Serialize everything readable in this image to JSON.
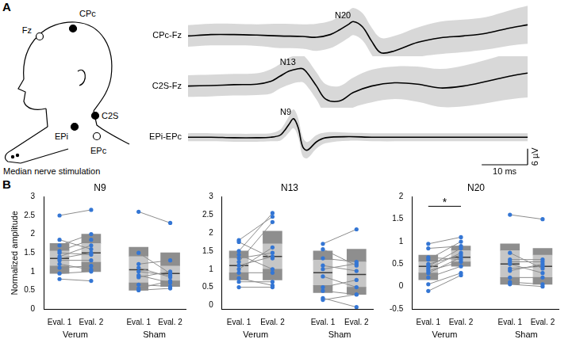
{
  "panel_labels": [
    "A",
    "B"
  ],
  "diagram": {
    "electrodes": [
      {
        "label": "Fz",
        "marker": "open"
      },
      {
        "label": "CPc",
        "marker": "filled"
      },
      {
        "label": "C2S",
        "marker": "filled"
      },
      {
        "label": "EPi",
        "marker": "filled"
      },
      {
        "label": "EPc",
        "marker": "open"
      }
    ],
    "caption": "Median nerve stimulation"
  },
  "chart_data": [
    {
      "type": "line",
      "tick_labels": false,
      "xlim": [
        0,
        74
      ],
      "ylim": [
        -8,
        11
      ],
      "x": [
        0,
        5,
        10,
        15,
        20,
        25,
        28,
        31,
        33,
        35,
        36,
        38,
        40,
        42,
        45,
        50,
        55,
        60,
        65,
        70,
        74
      ],
      "series": [
        {
          "name": "CPc-Fz",
          "color": "#000000",
          "values": [
            -0.5,
            0,
            0,
            -0.2,
            -0.5,
            -0.7,
            -1,
            0,
            1.7,
            3.8,
            4.8,
            2.9,
            -2.4,
            -6.7,
            -6,
            -2.9,
            -1.2,
            -0.5,
            0.5,
            2.4,
            3.6
          ],
          "sd": [
            4,
            4,
            4,
            4,
            4.5,
            4.5,
            5,
            5,
            5,
            5,
            5,
            5,
            5,
            5.5,
            5.5,
            5.5,
            6,
            6,
            6,
            6.5,
            7
          ]
        }
      ],
      "annotations": [
        {
          "text": "N20",
          "x": 36,
          "y": 4.8
        }
      ]
    },
    {
      "type": "line",
      "tick_labels": false,
      "xlim": [
        0,
        74
      ],
      "ylim": [
        -8,
        11
      ],
      "x": [
        0,
        5,
        10,
        15,
        18,
        20,
        22,
        24,
        25,
        26,
        28,
        30,
        33,
        36,
        40,
        45,
        50,
        55,
        60,
        65,
        70,
        74
      ],
      "series": [
        {
          "name": "C2S-Fz",
          "color": "#000000",
          "values": [
            0,
            0.2,
            0.5,
            0.7,
            1.7,
            3.6,
            5.5,
            6.4,
            6.4,
            4.8,
            0,
            -4.8,
            -5.5,
            -2.4,
            0,
            1.2,
            0.7,
            -0.7,
            0,
            1.7,
            3.6,
            4.8
          ],
          "sd": [
            4,
            4,
            4,
            4,
            4.5,
            4.5,
            5,
            5,
            5,
            5,
            5,
            5.5,
            5.5,
            5.5,
            6,
            6,
            6.5,
            7,
            7.5,
            8,
            8.5,
            9
          ]
        }
      ],
      "annotations": [
        {
          "text": "N13",
          "x": 24,
          "y": 6.4
        }
      ]
    },
    {
      "type": "line",
      "tick_labels": false,
      "xlim": [
        0,
        74
      ],
      "ylim": [
        -15,
        11
      ],
      "x": [
        0,
        5,
        10,
        15,
        18,
        20,
        21,
        22,
        23,
        24,
        25,
        26,
        28,
        30,
        35,
        40,
        50,
        60,
        70,
        74
      ],
      "series": [
        {
          "name": "EPi-EPc",
          "color": "#000000",
          "values": [
            0,
            0,
            -0.2,
            -0.2,
            0,
            0.7,
            2.4,
            4.8,
            6.9,
            3.6,
            -3.6,
            -4.8,
            -1.7,
            -0.2,
            0.2,
            0,
            0,
            0,
            0,
            0
          ],
          "sd": [
            1.5,
            1.5,
            1.5,
            1.5,
            1.5,
            2,
            2.5,
            3,
            3.5,
            3.5,
            3.5,
            3,
            2.5,
            2,
            1.5,
            1.5,
            1.5,
            1.5,
            1.5,
            1.5
          ]
        }
      ],
      "annotations": [
        {
          "text": "N9",
          "x": 23,
          "y": 6.9
        }
      ],
      "scale_bars": [
        {
          "axis": "x",
          "value": 10,
          "label": "10 ms"
        },
        {
          "axis": "y",
          "value": 6,
          "label": "6 µV"
        }
      ]
    },
    {
      "type": "box",
      "title": "N9",
      "y_label": "Normalized amplitude",
      "color": "#3476d4",
      "categories": [
        "Eval. 1",
        "Eval. 2"
      ],
      "ylim": [
        0,
        3
      ],
      "yticks": [
        0,
        0.5,
        1,
        1.5,
        2,
        2.5,
        3
      ],
      "groups": [
        {
          "name": "Verum",
          "boxes": [
            {
              "low": 0.95,
              "ci_low": 1.15,
              "mean": 1.35,
              "ci_high": 1.55,
              "high": 1.75
            },
            {
              "low": 1.0,
              "ci_low": 1.25,
              "mean": 1.5,
              "ci_high": 1.75,
              "high": 2.0
            }
          ],
          "pairs": [
            [
              2.5,
              2.65
            ],
            [
              1.85,
              1.6
            ],
            [
              1.7,
              2.0
            ],
            [
              1.55,
              1.85
            ],
            [
              1.5,
              1.45
            ],
            [
              1.4,
              1.7
            ],
            [
              1.35,
              1.5
            ],
            [
              1.3,
              1.3
            ],
            [
              1.2,
              1.05
            ],
            [
              1.1,
              1.15
            ],
            [
              0.95,
              1.0
            ],
            [
              0.8,
              0.75
            ]
          ]
        },
        {
          "name": "Sham",
          "boxes": [
            {
              "low": 0.5,
              "ci_low": 0.7,
              "mean": 1.05,
              "ci_high": 1.4,
              "high": 1.65
            },
            {
              "low": 0.6,
              "ci_low": 0.75,
              "mean": 0.95,
              "ci_high": 1.15,
              "high": 1.5
            }
          ],
          "pairs": [
            [
              2.6,
              2.3
            ],
            [
              1.5,
              0.95
            ],
            [
              1.2,
              1.3
            ],
            [
              1.1,
              0.85
            ],
            [
              1.0,
              0.9
            ],
            [
              0.9,
              0.7
            ],
            [
              0.85,
              1.0
            ],
            [
              0.65,
              0.6
            ],
            [
              0.55,
              0.75
            ],
            [
              0.5,
              0.55
            ]
          ]
        }
      ]
    },
    {
      "type": "box",
      "title": "N13",
      "color": "#3476d4",
      "categories": [
        "Eval. 1",
        "Eval. 2"
      ],
      "ylim": [
        -0.1,
        3
      ],
      "yticks": [
        0,
        0.5,
        1,
        1.5,
        2,
        2.5,
        3
      ],
      "groups": [
        {
          "name": "Verum",
          "boxes": [
            {
              "low": 0.7,
              "ci_low": 0.9,
              "mean": 1.1,
              "ci_high": 1.3,
              "high": 1.5
            },
            {
              "low": 0.7,
              "ci_low": 1.0,
              "mean": 1.35,
              "ci_high": 1.7,
              "high": 2.05
            }
          ],
          "pairs": [
            [
              1.8,
              2.45
            ],
            [
              1.75,
              1.3
            ],
            [
              1.5,
              2.55
            ],
            [
              1.4,
              1.0
            ],
            [
              1.3,
              1.45
            ],
            [
              1.2,
              2.3
            ],
            [
              1.1,
              1.35
            ],
            [
              1.0,
              1.6
            ],
            [
              0.9,
              0.9
            ],
            [
              0.75,
              0.55
            ],
            [
              0.65,
              0.65
            ],
            [
              0.5,
              0.5
            ]
          ]
        },
        {
          "name": "Sham",
          "boxes": [
            {
              "low": 0.35,
              "ci_low": 0.55,
              "mean": 0.9,
              "ci_high": 1.25,
              "high": 1.5
            },
            {
              "low": 0.3,
              "ci_low": 0.5,
              "mean": 0.85,
              "ci_high": 1.2,
              "high": 1.55
            }
          ],
          "pairs": [
            [
              1.7,
              2.1
            ],
            [
              1.55,
              1.1
            ],
            [
              1.3,
              1.2
            ],
            [
              1.1,
              0.95
            ],
            [
              1.0,
              1.15
            ],
            [
              0.8,
              0.5
            ],
            [
              0.5,
              0.7
            ],
            [
              0.4,
              0.3
            ],
            [
              0.2,
              -0.05
            ],
            [
              0.15,
              0.3
            ]
          ]
        }
      ]
    },
    {
      "type": "box",
      "title": "N20",
      "color": "#3476d4",
      "categories": [
        "Eval. 1",
        "Eval. 2"
      ],
      "ylim": [
        -0.5,
        2
      ],
      "yticks": [
        -0.5,
        0,
        0.5,
        1,
        1.5,
        2
      ],
      "significance": [
        {
          "group": "Verum",
          "label": "*"
        }
      ],
      "groups": [
        {
          "name": "Verum",
          "boxes": [
            {
              "low": 0.15,
              "ci_low": 0.3,
              "mean": 0.45,
              "ci_high": 0.55,
              "high": 0.7
            },
            {
              "low": 0.45,
              "ci_low": 0.55,
              "mean": 0.65,
              "ci_high": 0.8,
              "high": 0.9
            }
          ],
          "pairs": [
            [
              0.95,
              1.1
            ],
            [
              0.85,
              0.9
            ],
            [
              0.65,
              0.6
            ],
            [
              0.6,
              1.0
            ],
            [
              0.5,
              0.7
            ],
            [
              0.45,
              0.85
            ],
            [
              0.4,
              0.75
            ],
            [
              0.35,
              0.55
            ],
            [
              0.3,
              0.65
            ],
            [
              0.2,
              0.45
            ],
            [
              0.05,
              0.3
            ],
            [
              -0.1,
              0.25
            ]
          ]
        },
        {
          "name": "Sham",
          "boxes": [
            {
              "low": 0.05,
              "ci_low": 0.2,
              "mean": 0.5,
              "ci_high": 0.8,
              "high": 0.95
            },
            {
              "low": 0.05,
              "ci_low": 0.2,
              "mean": 0.45,
              "ci_high": 0.7,
              "high": 0.85
            }
          ],
          "pairs": [
            [
              1.6,
              1.5
            ],
            [
              0.75,
              0.4
            ],
            [
              0.6,
              0.6
            ],
            [
              0.55,
              0.55
            ],
            [
              0.5,
              0.3
            ],
            [
              0.4,
              0.45
            ],
            [
              0.35,
              0.5
            ],
            [
              0.2,
              0.2
            ],
            [
              0.1,
              0.05
            ],
            [
              0.05,
              0.0
            ]
          ]
        }
      ]
    }
  ]
}
